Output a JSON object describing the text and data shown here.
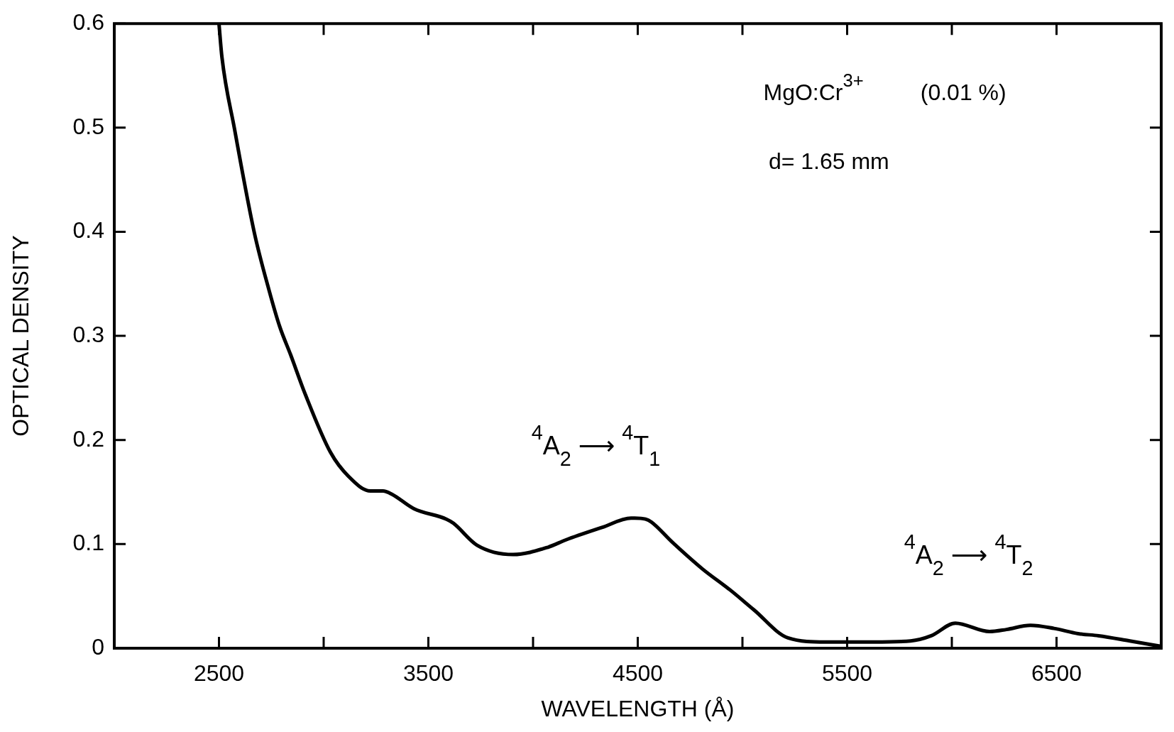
{
  "chart_data": {
    "type": "line",
    "xlabel": "WAVELENGTH (Å)",
    "ylabel": "OPTICAL DENSITY",
    "x": [
      2500,
      2514,
      2574,
      2669,
      2739,
      2790,
      2842,
      2912,
      3033,
      3119,
      3223,
      3283,
      3325,
      3431,
      3586,
      3620,
      3732,
      3905,
      4071,
      4156,
      4329,
      4468,
      4485,
      4537,
      4566,
      4664,
      4810,
      4941,
      5054,
      5217,
      5397,
      5625,
      5803,
      5902,
      6017,
      6180,
      6261,
      6375,
      6488,
      6603,
      6701,
      6850,
      6993
    ],
    "series": [
      {
        "color": "#000000",
        "values": [
          0.6,
          0.568,
          0.499,
          0.399,
          0.344,
          0.309,
          0.282,
          0.244,
          0.188,
          0.165,
          0.151,
          0.151,
          0.148,
          0.134,
          0.124,
          0.12,
          0.099,
          0.09,
          0.097,
          0.104,
          0.116,
          0.125,
          0.125,
          0.124,
          0.121,
          0.102,
          0.076,
          0.056,
          0.037,
          0.01,
          0.006,
          0.006,
          0.007,
          0.012,
          0.024,
          0.016,
          0.018,
          0.022,
          0.019,
          0.014,
          0.012,
          0.007,
          0.002
        ]
      }
    ],
    "xlim": [
      2000,
      7000
    ],
    "xticks": [
      {
        "value": 2000,
        "label": null
      },
      2500,
      {
        "value": 3000,
        "label": null
      },
      3500,
      {
        "value": 4000,
        "label": null
      },
      4500,
      {
        "value": 5000,
        "label": null
      },
      5500,
      {
        "value": 6000,
        "label": null
      },
      6500,
      {
        "value": 7000,
        "label": null
      }
    ],
    "ylim": [
      0,
      0.6
    ],
    "yticks": [
      0,
      0.1,
      0.2,
      0.3,
      0.4,
      0.5,
      0.6
    ],
    "grid": false,
    "legend": false,
    "marker": "none",
    "line_style": "solid",
    "annotations": [
      "MgO:Cr$^{3+}$",
      "(0.01 %)",
      "d= 1.65 mm",
      "$^{4}$A$_{2}$ ⟶ $^{4}$T$_{1}$",
      "$^{4}$A$_{2}$ ⟶ $^{4}$T$_{2}$"
    ]
  }
}
